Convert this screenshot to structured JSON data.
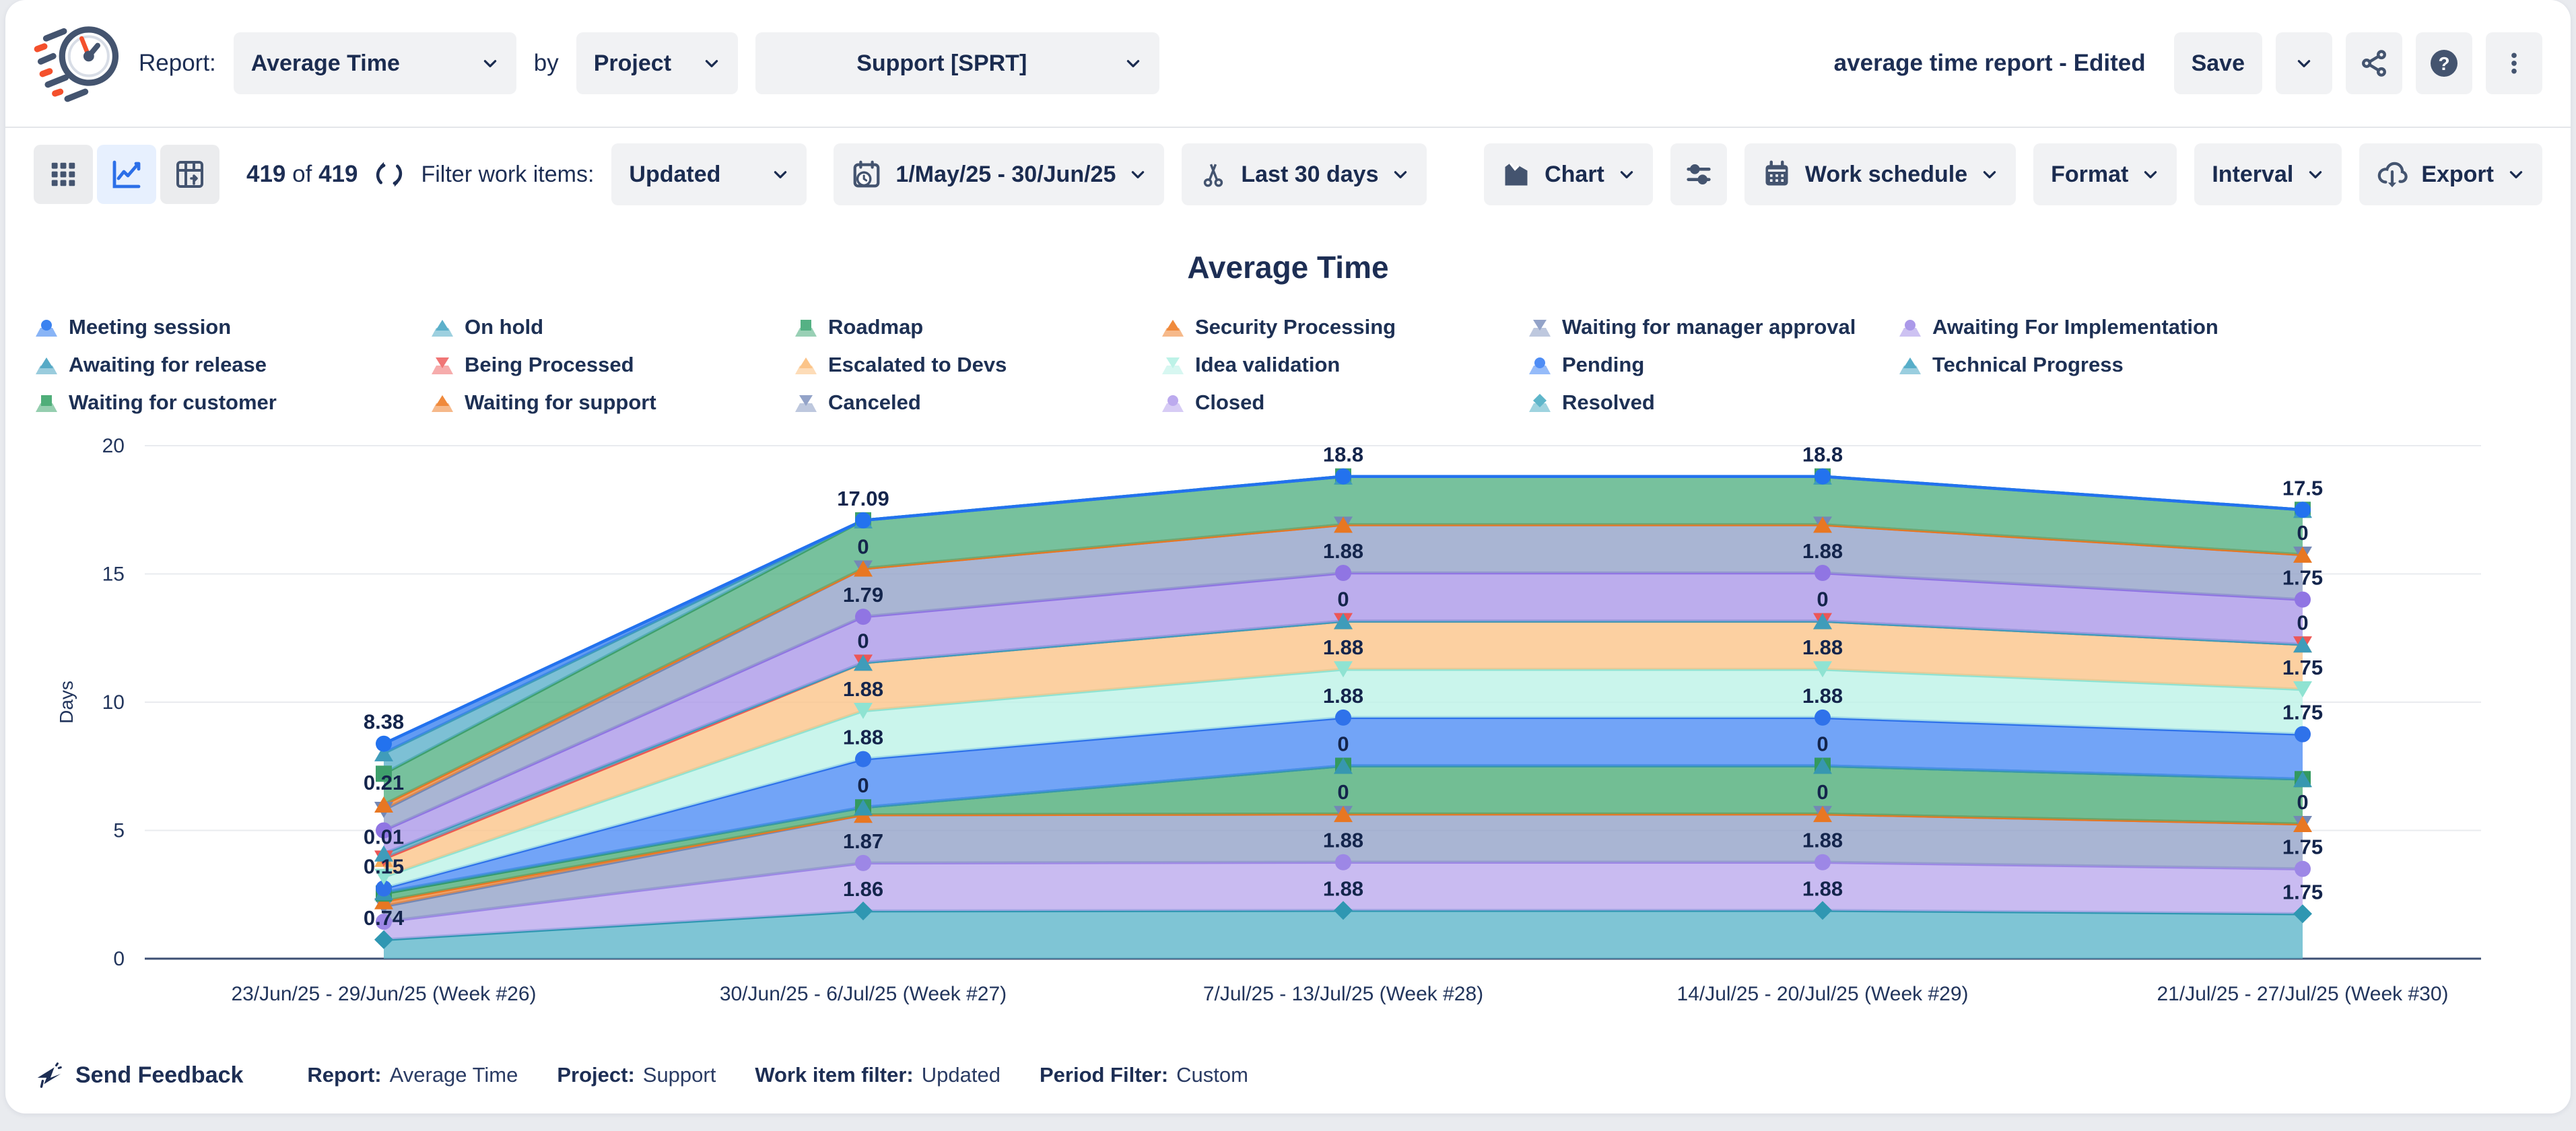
{
  "header": {
    "report_label": "Report:",
    "report_value": "Average Time",
    "by_label": "by",
    "group_value": "Project",
    "project_value": "Support [SPRT]",
    "doc_title": "average time report - Edited",
    "save_label": "Save"
  },
  "toolbar": {
    "count_current": "419",
    "count_of": "of",
    "count_total": "419",
    "filter_label": "Filter work items:",
    "filter_value": "Updated",
    "date_range": "1/May/25 - 30/Jun/25",
    "trim_value": "Last 30 days",
    "chart_label": "Chart",
    "work_schedule_label": "Work schedule",
    "format_label": "Format",
    "interval_label": "Interval",
    "export_label": "Export"
  },
  "footer": {
    "feedback_label": "Send Feedback",
    "items": [
      {
        "label": "Report:",
        "value": "Average Time"
      },
      {
        "label": "Project:",
        "value": "Support"
      },
      {
        "label": "Work item filter:",
        "value": "Updated"
      },
      {
        "label": "Period Filter:",
        "value": "Custom"
      }
    ]
  },
  "chart_data": {
    "type": "area",
    "stacked": true,
    "title": "Average Time",
    "ylabel": "Days",
    "ylim": [
      0,
      20
    ],
    "yticks": [
      0,
      5,
      10,
      15,
      20
    ],
    "grid": true,
    "legend_position": "top",
    "categories": [
      "23/Jun/25 - 29/Jun/25 (Week #26)",
      "30/Jun/25 - 6/Jul/25 (Week #27)",
      "7/Jul/25 - 13/Jul/25 (Week #28)",
      "14/Jul/25 - 20/Jul/25 (Week #29)",
      "21/Jul/25 - 27/Jul/25 (Week #30)"
    ],
    "legend_order": [
      "Meeting session",
      "On hold",
      "Roadmap",
      "Security Processing",
      "Waiting for manager approval",
      "Awaiting For Implementation",
      "Awaiting for release",
      "Being Processed",
      "Escalated to Devs",
      "Idea validation",
      "Pending",
      "Technical Progress",
      "Waiting for customer",
      "Waiting for support",
      "Canceled",
      "Closed",
      "Resolved"
    ],
    "series": [
      {
        "name": "Resolved",
        "fill": "#5fb6ca",
        "line": "#2f97b2",
        "marker": "diamond",
        "values": [
          0.74,
          1.86,
          1.88,
          1.88,
          1.75
        ]
      },
      {
        "name": "Closed",
        "fill": "#bcaaee",
        "line": "#9d87e6",
        "marker": "circle",
        "values": [
          0.7,
          1.87,
          1.88,
          1.88,
          1.75
        ]
      },
      {
        "name": "Canceled",
        "fill": "#93a3c8",
        "line": "#7488b5",
        "marker": "triangle-down",
        "values": [
          0.6,
          1.88,
          1.88,
          1.88,
          1.75
        ]
      },
      {
        "name": "Waiting for support",
        "fill": "#f08a3c",
        "line": "#e87722",
        "marker": "triangle-up",
        "values": [
          0.2,
          0,
          0,
          0,
          0
        ]
      },
      {
        "name": "Waiting for customer",
        "fill": "#4fae79",
        "line": "#33995f",
        "marker": "square",
        "values": [
          0.3,
          0.29,
          1.88,
          1.88,
          1.75
        ]
      },
      {
        "name": "Technical Progress",
        "fill": "#57aec9",
        "line": "#3797b0",
        "marker": "triangle-up",
        "values": [
          0.05,
          0,
          0,
          0,
          0
        ]
      },
      {
        "name": "Pending",
        "fill": "#4f8df5",
        "line": "#2f72ea",
        "marker": "circle",
        "values": [
          0.15,
          1.88,
          1.88,
          1.88,
          1.75
        ]
      },
      {
        "name": "Idea validation",
        "fill": "#bdf2e7",
        "line": "#8fe3d2",
        "marker": "triangle-down",
        "values": [
          0.45,
          1.88,
          1.88,
          1.88,
          1.75
        ]
      },
      {
        "name": "Escalated to Devs",
        "fill": "#fbc489",
        "line": "#f8ab57",
        "marker": "triangle-up",
        "values": [
          0.7,
          1.88,
          1.88,
          1.88,
          1.75
        ]
      },
      {
        "name": "Being Processed",
        "fill": "#f07575",
        "line": "#ec5757",
        "marker": "triangle-down",
        "values": [
          0.01,
          0,
          0,
          0,
          0
        ]
      },
      {
        "name": "Awaiting for release",
        "fill": "#57aac6",
        "line": "#3f9cba",
        "marker": "triangle-up",
        "values": [
          0.2,
          0,
          0,
          0,
          0
        ]
      },
      {
        "name": "Awaiting For Implementation",
        "fill": "#ab99e9",
        "line": "#9075e3",
        "marker": "circle",
        "values": [
          0.9,
          1.79,
          1.88,
          1.88,
          1.75
        ]
      },
      {
        "name": "Waiting for manager approval",
        "fill": "#93a3c8",
        "line": "#7488b5",
        "marker": "triangle-down",
        "values": [
          0.8,
          1.88,
          1.88,
          1.88,
          1.75
        ]
      },
      {
        "name": "Security Processing",
        "fill": "#f08a3c",
        "line": "#e87722",
        "marker": "triangle-up",
        "values": [
          0.21,
          0,
          0,
          0,
          0
        ]
      },
      {
        "name": "Roadmap",
        "fill": "#55b184",
        "line": "#3fa06c",
        "marker": "square",
        "values": [
          1.2,
          1.88,
          1.88,
          1.88,
          1.75
        ]
      },
      {
        "name": "On hold",
        "fill": "#5cb0ca",
        "line": "#3f9cba",
        "marker": "triangle-up",
        "values": [
          0.8,
          0,
          0,
          0,
          0
        ]
      },
      {
        "name": "Meeting session",
        "fill": "#3b82f0",
        "line": "#2372ee",
        "marker": "circle",
        "values": [
          0.37,
          0,
          0,
          0,
          0
        ]
      }
    ],
    "data_labels": [
      {
        "week": 0,
        "series": "Meeting session",
        "text": "8.38"
      },
      {
        "week": 0,
        "series": "Security Processing",
        "text": "0.21"
      },
      {
        "week": 0,
        "series": "Being Processed",
        "text": "0.01"
      },
      {
        "week": 0,
        "series": "Pending",
        "text": "0.15"
      },
      {
        "week": 0,
        "series": "Resolved",
        "text": "0.74"
      },
      {
        "week": 1,
        "series": "Roadmap",
        "text": "17.09"
      },
      {
        "week": 1,
        "series": "Security Processing",
        "text": "0"
      },
      {
        "week": 1,
        "series": "Awaiting For Implementation",
        "text": "1.79"
      },
      {
        "week": 1,
        "series": "Being Processed",
        "text": "0"
      },
      {
        "week": 1,
        "series": "Idea validation",
        "text": "1.88"
      },
      {
        "week": 1,
        "series": "Pending",
        "text": "1.88"
      },
      {
        "week": 1,
        "series": "Waiting for customer",
        "text": "0"
      },
      {
        "week": 1,
        "series": "Closed",
        "text": "1.87"
      },
      {
        "week": 1,
        "series": "Resolved",
        "text": "1.86"
      },
      {
        "week": 2,
        "series": "Roadmap",
        "text": "18.8"
      },
      {
        "week": 2,
        "series": "Awaiting For Implementation",
        "text": "1.88"
      },
      {
        "week": 2,
        "series": "Being Processed",
        "text": "0"
      },
      {
        "week": 2,
        "series": "Idea validation",
        "text": "1.88"
      },
      {
        "week": 2,
        "series": "Pending",
        "text": "1.88"
      },
      {
        "week": 2,
        "series": "Technical Progress",
        "text": "0"
      },
      {
        "week": 2,
        "series": "Waiting for support",
        "text": "0"
      },
      {
        "week": 2,
        "series": "Closed",
        "text": "1.88"
      },
      {
        "week": 2,
        "series": "Resolved",
        "text": "1.88"
      },
      {
        "week": 3,
        "series": "Roadmap",
        "text": "18.8"
      },
      {
        "week": 3,
        "series": "Awaiting For Implementation",
        "text": "1.88"
      },
      {
        "week": 3,
        "series": "Being Processed",
        "text": "0"
      },
      {
        "week": 3,
        "series": "Idea validation",
        "text": "1.88"
      },
      {
        "week": 3,
        "series": "Pending",
        "text": "1.88"
      },
      {
        "week": 3,
        "series": "Technical Progress",
        "text": "0"
      },
      {
        "week": 3,
        "series": "Waiting for support",
        "text": "0"
      },
      {
        "week": 3,
        "series": "Closed",
        "text": "1.88"
      },
      {
        "week": 3,
        "series": "Resolved",
        "text": "1.88"
      },
      {
        "week": 4,
        "series": "Roadmap",
        "text": "17.5"
      },
      {
        "week": 4,
        "series": "Security Processing",
        "text": "0"
      },
      {
        "week": 4,
        "series": "Awaiting For Implementation",
        "text": "1.75"
      },
      {
        "week": 4,
        "series": "Being Processed",
        "text": "0"
      },
      {
        "week": 4,
        "series": "Idea validation",
        "text": "1.75"
      },
      {
        "week": 4,
        "series": "Pending",
        "text": "1.75"
      },
      {
        "week": 4,
        "series": "Waiting for support",
        "text": "0"
      },
      {
        "week": 4,
        "series": "Closed",
        "text": "1.75"
      },
      {
        "week": 4,
        "series": "Resolved",
        "text": "1.75"
      }
    ]
  }
}
